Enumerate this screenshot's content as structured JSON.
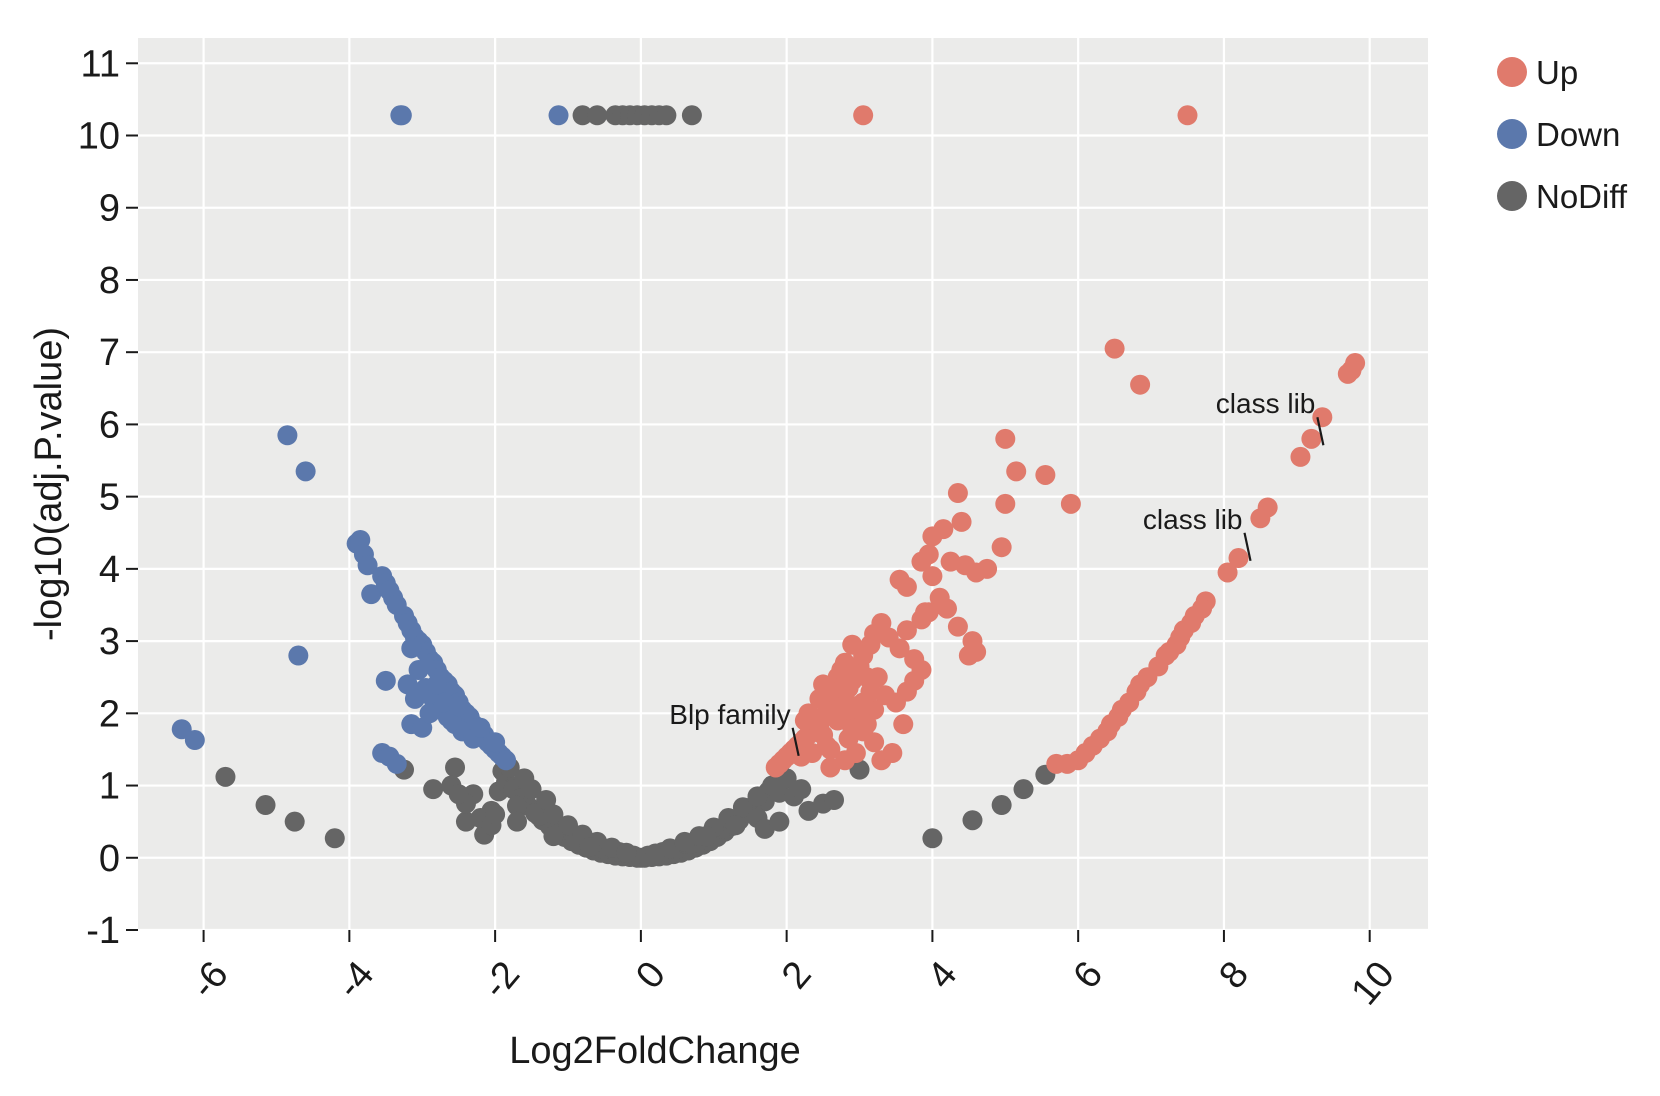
{
  "chart_data": {
    "type": "scatter",
    "title": "",
    "xlabel": "Log2FoldChange",
    "ylabel": "-log10(adj.P.value)",
    "xlim": [
      -6.9,
      10.8
    ],
    "ylim": [
      -1,
      11.35
    ],
    "xticks": [
      -6,
      -4,
      -2,
      0,
      2,
      4,
      6,
      8,
      10
    ],
    "xtick_labels": [
      "-6",
      "-4",
      "-2",
      "0",
      "2",
      "4",
      "6",
      "8",
      "10"
    ],
    "yticks": [
      -1,
      0,
      1,
      2,
      3,
      4,
      5,
      6,
      7,
      8,
      9,
      10,
      11
    ],
    "ytick_labels": [
      "-1",
      "0",
      "1",
      "2",
      "3",
      "4",
      "5",
      "6",
      "7",
      "8",
      "9",
      "10",
      "11"
    ],
    "grid": true,
    "legend_position": "top-right",
    "colors": {
      "panel": "#ebebea",
      "grid": "#ffffff",
      "Up": "#e07a6c",
      "Down": "#5b78ac",
      "NoDiff": "#656565"
    },
    "legend": [
      "Up",
      "Down",
      "NoDiff"
    ],
    "series": [
      {
        "name": "Up",
        "x": [
          3.05,
          7.5,
          6.5,
          6.85,
          9.8,
          9.75,
          9.7,
          9.35,
          9.2,
          9.05,
          5.0,
          5.15,
          5.55,
          5.9,
          4.35,
          5.0,
          4.15,
          4.4,
          4.0,
          3.95,
          3.85,
          4.0,
          4.25,
          4.45,
          4.6,
          4.75,
          4.95,
          3.55,
          3.65,
          3.9,
          4.1,
          4.2,
          4.35,
          3.85,
          3.95,
          4.55,
          4.6,
          4.5,
          3.3,
          3.2,
          3.15,
          3.4,
          3.55,
          3.65,
          3.75,
          3.85,
          3.75,
          3.65,
          3.5,
          3.35,
          3.2,
          3.1,
          3.0,
          2.95,
          2.9,
          2.85,
          2.75,
          2.65,
          2.55,
          2.5,
          2.45,
          2.4,
          2.35,
          2.3,
          2.25,
          2.2,
          2.15,
          2.1,
          2.05,
          2.0,
          1.95,
          1.9,
          1.85,
          2.8,
          2.7,
          2.6,
          2.7,
          2.5,
          2.35,
          3.0,
          3.1,
          3.2,
          2.95,
          2.8,
          2.6,
          2.55,
          3.05,
          2.9,
          2.75,
          2.95,
          3.15,
          3.25,
          3.05,
          2.85,
          2.45,
          2.3,
          2.6,
          2.2,
          2.75,
          2.9,
          3.3,
          3.45,
          3.6,
          3.05,
          2.5,
          2.25,
          2.85,
          8.6,
          8.5,
          8.2,
          8.05,
          7.75,
          7.7,
          7.6,
          7.55,
          7.45,
          7.4,
          7.35,
          7.25,
          7.2,
          7.1,
          6.95,
          6.85,
          6.8,
          6.7,
          6.6,
          6.55,
          6.45,
          6.4,
          6.3,
          6.2,
          6.1,
          6.0,
          5.85,
          5.7
        ],
        "y": [
          10.28,
          10.28,
          7.05,
          6.55,
          6.85,
          6.75,
          6.7,
          6.1,
          5.8,
          5.55,
          5.8,
          5.35,
          5.3,
          4.9,
          5.05,
          4.9,
          4.55,
          4.65,
          4.45,
          4.2,
          4.1,
          3.9,
          4.1,
          4.05,
          3.95,
          4.0,
          4.3,
          3.85,
          3.75,
          3.4,
          3.6,
          3.45,
          3.2,
          3.3,
          3.4,
          3.0,
          2.85,
          2.8,
          3.25,
          3.1,
          2.95,
          3.05,
          2.9,
          3.15,
          2.75,
          2.6,
          2.45,
          2.3,
          2.15,
          2.25,
          2.05,
          2.5,
          2.65,
          2.55,
          2.45,
          2.35,
          2.25,
          2.1,
          2.0,
          1.95,
          1.85,
          1.8,
          1.75,
          1.7,
          1.65,
          1.6,
          1.55,
          1.5,
          1.45,
          1.4,
          1.35,
          1.3,
          1.25,
          2.7,
          2.5,
          2.3,
          1.9,
          1.7,
          1.45,
          2.0,
          1.85,
          1.6,
          1.45,
          1.35,
          1.25,
          1.55,
          2.8,
          2.95,
          2.6,
          2.1,
          2.3,
          2.5,
          1.75,
          1.65,
          2.2,
          2.0,
          1.5,
          1.4,
          1.95,
          1.8,
          1.35,
          1.45,
          1.85,
          2.15,
          2.4,
          1.9,
          2.05,
          4.85,
          4.7,
          4.15,
          3.95,
          3.55,
          3.45,
          3.35,
          3.25,
          3.15,
          3.05,
          2.95,
          2.85,
          2.8,
          2.65,
          2.5,
          2.4,
          2.3,
          2.15,
          2.05,
          1.95,
          1.85,
          1.75,
          1.65,
          1.55,
          1.45,
          1.35,
          1.3,
          1.3
        ]
      },
      {
        "name": "Down",
        "x": [
          -3.3,
          -3.28,
          -1.13,
          -4.85,
          -4.6,
          -3.9,
          -3.85,
          -3.8,
          -3.75,
          -3.7,
          -3.55,
          -3.5,
          -3.45,
          -3.4,
          -3.35,
          -3.25,
          -3.2,
          -3.15,
          -3.1,
          -3.05,
          -3.0,
          -2.95,
          -2.9,
          -2.85,
          -2.8,
          -2.75,
          -2.7,
          -2.65,
          -2.6,
          -2.55,
          -2.5,
          -2.45,
          -2.4,
          -2.35,
          -2.3,
          -2.25,
          -2.2,
          -2.15,
          -2.1,
          -2.05,
          -2.0,
          -1.95,
          -1.9,
          -1.85,
          -4.7,
          -3.5,
          -3.2,
          -3.15,
          -3.05,
          -2.95,
          -2.85,
          -2.75,
          -2.65,
          -2.55,
          -2.45,
          -3.15,
          -3.0,
          -2.9,
          -2.7,
          -3.55,
          -3.45,
          -3.35,
          -2.6,
          -2.3,
          -6.3,
          -6.12,
          -3.1,
          -2.8,
          -2.5,
          -2.2,
          -2.0
        ],
        "y": [
          10.28,
          10.28,
          10.28,
          5.85,
          5.35,
          4.35,
          4.4,
          4.2,
          4.05,
          3.65,
          3.9,
          3.8,
          3.7,
          3.6,
          3.5,
          3.35,
          3.25,
          3.15,
          3.05,
          3.0,
          2.95,
          2.85,
          2.75,
          2.7,
          2.6,
          2.5,
          2.45,
          2.4,
          2.3,
          2.25,
          2.15,
          2.05,
          2.0,
          1.95,
          1.85,
          1.8,
          1.75,
          1.7,
          1.6,
          1.55,
          1.5,
          1.45,
          1.4,
          1.35,
          2.8,
          2.45,
          2.4,
          2.9,
          2.6,
          2.35,
          2.2,
          2.05,
          1.95,
          1.85,
          1.75,
          1.85,
          1.8,
          2.0,
          2.15,
          1.45,
          1.4,
          1.3,
          1.9,
          1.65,
          1.78,
          1.63,
          2.2,
          2.4,
          2.1,
          1.8,
          1.6
        ]
      },
      {
        "name": "NoDiff",
        "x": [
          -0.8,
          -0.6,
          -0.35,
          -0.25,
          -0.15,
          -0.05,
          0.05,
          0.15,
          0.25,
          0.35,
          0.7,
          -5.7,
          -5.15,
          -4.75,
          -4.2,
          -3.25,
          -2.85,
          -2.55,
          -2.4,
          -2.3,
          -2.15,
          -2.05,
          -1.95,
          -1.85,
          -1.75,
          -1.65,
          -1.55,
          -1.45,
          -1.35,
          -1.25,
          -1.15,
          -1.05,
          -0.95,
          -0.85,
          -0.75,
          -0.65,
          -0.55,
          -0.45,
          -0.35,
          -0.25,
          -0.15,
          -0.05,
          0.0,
          0.05,
          0.15,
          0.25,
          0.35,
          0.45,
          0.55,
          0.65,
          0.75,
          0.85,
          0.95,
          1.05,
          1.15,
          1.25,
          1.35,
          1.45,
          1.55,
          1.65,
          1.75,
          1.85,
          1.95,
          -2.4,
          -2.2,
          -2.05,
          -1.7,
          -1.4,
          -1.1,
          -0.9,
          -0.7,
          -0.5,
          -0.3,
          -0.1,
          0.1,
          0.3,
          0.5,
          0.7,
          0.9,
          1.1,
          1.3,
          1.5,
          1.7,
          1.9,
          -1.9,
          -1.8,
          -1.6,
          -1.5,
          -1.3,
          -1.2,
          -1.0,
          -0.8,
          -0.6,
          -0.4,
          -0.2,
          0.2,
          0.4,
          0.6,
          0.8,
          1.0,
          1.2,
          1.4,
          1.6,
          1.8,
          2.0,
          2.1,
          2.2,
          2.3,
          2.5,
          2.65,
          -2.6,
          -2.5,
          -2.0,
          -1.7,
          -1.2,
          -0.7,
          0.6,
          0.9,
          1.3,
          1.6,
          1.7,
          1.9,
          3.0,
          4.0,
          4.55,
          4.95,
          5.25,
          5.55
        ],
        "y": [
          10.28,
          10.28,
          10.28,
          10.28,
          10.28,
          10.28,
          10.28,
          10.28,
          10.28,
          10.28,
          10.28,
          1.12,
          0.73,
          0.5,
          0.27,
          1.22,
          0.95,
          1.25,
          0.5,
          0.88,
          0.32,
          0.65,
          0.92,
          1.05,
          0.95,
          0.82,
          0.72,
          0.62,
          0.52,
          0.44,
          0.36,
          0.29,
          0.23,
          0.18,
          0.14,
          0.1,
          0.07,
          0.05,
          0.03,
          0.02,
          0.01,
          0.0,
          0.0,
          0.0,
          0.01,
          0.02,
          0.03,
          0.05,
          0.07,
          0.1,
          0.14,
          0.18,
          0.23,
          0.29,
          0.36,
          0.44,
          0.52,
          0.62,
          0.72,
          0.82,
          0.92,
          1.02,
          1.12,
          0.75,
          0.55,
          0.45,
          0.72,
          0.58,
          0.38,
          0.28,
          0.2,
          0.12,
          0.08,
          0.03,
          0.03,
          0.08,
          0.12,
          0.2,
          0.3,
          0.4,
          0.52,
          0.65,
          0.78,
          0.9,
          1.2,
          1.25,
          1.1,
          0.95,
          0.8,
          0.6,
          0.45,
          0.32,
          0.22,
          0.14,
          0.07,
          0.06,
          0.13,
          0.2,
          0.3,
          0.42,
          0.55,
          0.7,
          0.85,
          1.0,
          1.1,
          0.85,
          0.95,
          0.65,
          0.75,
          0.8,
          1.0,
          0.88,
          0.6,
          0.5,
          0.3,
          0.15,
          0.22,
          0.3,
          0.45,
          0.55,
          0.4,
          0.5,
          1.22,
          0.27,
          0.52,
          0.73,
          0.95,
          1.15
        ]
      }
    ],
    "annotations": [
      {
        "text": "Blp family",
        "x": 2.0,
        "y": 1.55
      },
      {
        "text": "class lib",
        "x": 9.2,
        "y": 5.85
      },
      {
        "text": "class lib",
        "x": 8.2,
        "y": 4.25
      }
    ]
  }
}
